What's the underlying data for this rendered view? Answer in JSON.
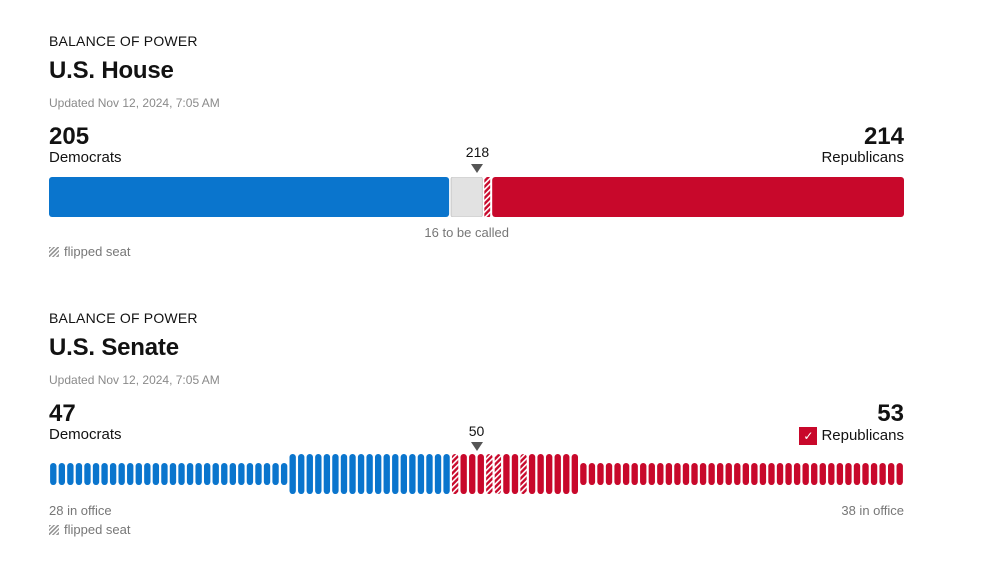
{
  "colors": {
    "dem": "#0a75cd",
    "rep": "#c8082b",
    "uncalled": "#e2e2e2",
    "flip_stripe": "#ffffff"
  },
  "house": {
    "kicker": "BALANCE OF POWER",
    "title": "U.S. House",
    "updated": "Updated Nov 12, 2024, 7:05 AM",
    "majority_label": "218",
    "uncalled_label": "16 to be called",
    "flipped_label": "flipped seat"
  },
  "senate": {
    "kicker": "BALANCE OF POWER",
    "title": "U.S. Senate",
    "updated": "Updated Nov 12, 2024, 7:05 AM",
    "majority_label": "50",
    "dem_in_office_label": "28 in office",
    "rep_in_office_label": "38 in office",
    "flipped_label": "flipped seat",
    "check_icon": "check-icon"
  },
  "chart_data": [
    {
      "type": "bar",
      "chamber": "house",
      "total_seats": 435,
      "majority": 218,
      "series": [
        {
          "name": "Democrats",
          "value": "205",
          "seats": 205,
          "flipped": 0
        },
        {
          "name": "Republicans",
          "value": "214",
          "seats": 214,
          "flipped": 3
        }
      ],
      "uncalled": 16
    },
    {
      "type": "bar",
      "chamber": "senate",
      "total_seats": 100,
      "majority": 50,
      "series": [
        {
          "name": "Democrats",
          "value": "47",
          "seats": 47,
          "in_office": 28,
          "up_for_election": 19,
          "flipped": 0
        },
        {
          "name": "Republicans",
          "value": "53",
          "seats": 53,
          "in_office": 38,
          "up_for_election": 15,
          "flipped": 4,
          "flipped_positions_in_contested": [
            0,
            4,
            5,
            8
          ],
          "winner": true
        }
      ],
      "uncalled": 0
    }
  ]
}
